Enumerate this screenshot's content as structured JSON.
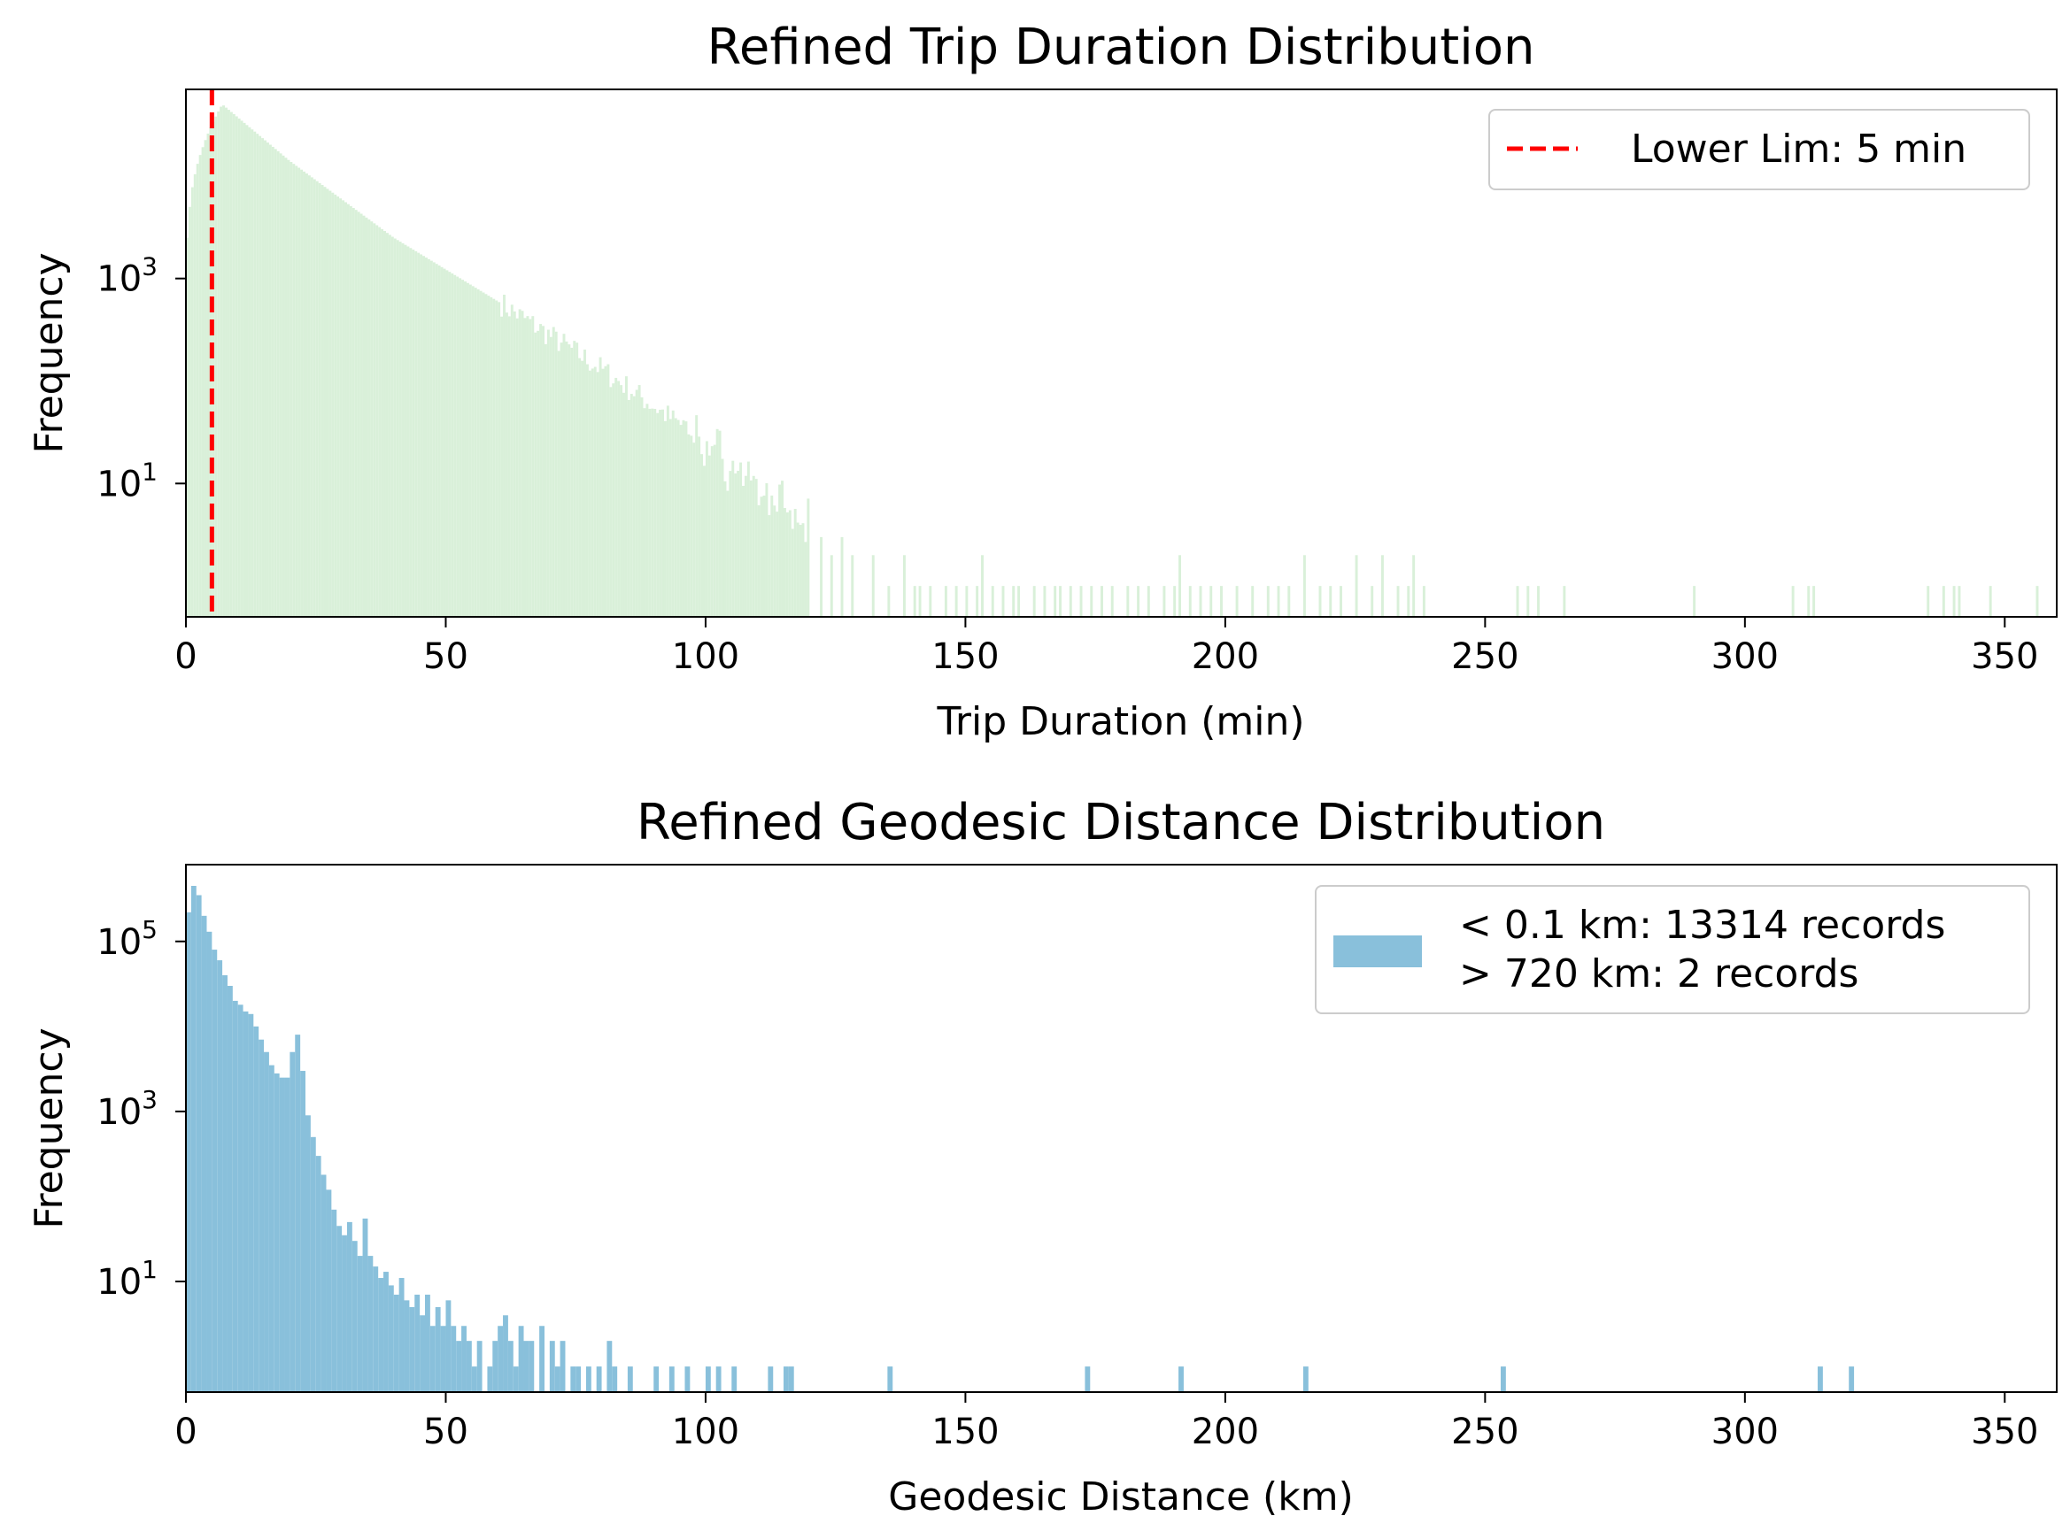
{
  "chart_data": [
    {
      "type": "bar",
      "title": "Refined Trip Duration Distribution",
      "xlabel": "Trip Duration (min)",
      "ylabel": "Frequency",
      "xlim": [
        0,
        360
      ],
      "ylim": [
        0.5,
        70000
      ],
      "yscale": "log",
      "grid": false,
      "bar_color": "#d9f0d9",
      "x_ticks": [
        0,
        50,
        100,
        150,
        200,
        250,
        300,
        350
      ],
      "y_ticks": [
        {
          "value": 10,
          "base": "10",
          "exp": "1"
        },
        {
          "value": 1000,
          "base": "10",
          "exp": "3"
        }
      ],
      "bin_width": 0.5,
      "peak": {
        "x": 7,
        "y": 50000
      },
      "decay_knots": [
        [
          7,
          50000
        ],
        [
          20,
          14000
        ],
        [
          40,
          2500
        ],
        [
          60,
          600
        ],
        [
          80,
          130
        ],
        [
          100,
          25
        ],
        [
          110,
          9
        ],
        [
          118,
          4
        ],
        [
          130,
          2
        ],
        [
          145,
          1.3
        ]
      ],
      "sparse_bars": [
        {
          "x": 122,
          "y": 3
        },
        {
          "x": 124,
          "y": 2
        },
        {
          "x": 126,
          "y": 3
        },
        {
          "x": 128,
          "y": 2
        },
        {
          "x": 132,
          "y": 2
        },
        {
          "x": 135,
          "y": 1
        },
        {
          "x": 138,
          "y": 2
        },
        {
          "x": 140,
          "y": 1
        },
        {
          "x": 141,
          "y": 1
        },
        {
          "x": 143,
          "y": 1
        },
        {
          "x": 146,
          "y": 1
        },
        {
          "x": 148,
          "y": 1
        },
        {
          "x": 150,
          "y": 1
        },
        {
          "x": 152,
          "y": 1
        },
        {
          "x": 153,
          "y": 2
        },
        {
          "x": 155,
          "y": 1
        },
        {
          "x": 157,
          "y": 1
        },
        {
          "x": 159,
          "y": 1
        },
        {
          "x": 160,
          "y": 1
        },
        {
          "x": 163,
          "y": 1
        },
        {
          "x": 165,
          "y": 1
        },
        {
          "x": 167,
          "y": 1
        },
        {
          "x": 168,
          "y": 1
        },
        {
          "x": 170,
          "y": 1
        },
        {
          "x": 172,
          "y": 1
        },
        {
          "x": 174,
          "y": 1
        },
        {
          "x": 176,
          "y": 1
        },
        {
          "x": 178,
          "y": 1
        },
        {
          "x": 181,
          "y": 1
        },
        {
          "x": 183,
          "y": 1
        },
        {
          "x": 185,
          "y": 1
        },
        {
          "x": 188,
          "y": 1
        },
        {
          "x": 190,
          "y": 1
        },
        {
          "x": 191,
          "y": 2
        },
        {
          "x": 193,
          "y": 1
        },
        {
          "x": 195,
          "y": 1
        },
        {
          "x": 197,
          "y": 1
        },
        {
          "x": 199,
          "y": 1
        },
        {
          "x": 202,
          "y": 1
        },
        {
          "x": 205,
          "y": 1
        },
        {
          "x": 208,
          "y": 1
        },
        {
          "x": 210,
          "y": 1
        },
        {
          "x": 212,
          "y": 1
        },
        {
          "x": 215,
          "y": 2
        },
        {
          "x": 218,
          "y": 1
        },
        {
          "x": 220,
          "y": 1
        },
        {
          "x": 222,
          "y": 1
        },
        {
          "x": 225,
          "y": 2
        },
        {
          "x": 228,
          "y": 1
        },
        {
          "x": 230,
          "y": 2
        },
        {
          "x": 233,
          "y": 1
        },
        {
          "x": 235,
          "y": 1
        },
        {
          "x": 236,
          "y": 2
        },
        {
          "x": 238,
          "y": 1
        },
        {
          "x": 256,
          "y": 1
        },
        {
          "x": 258,
          "y": 1
        },
        {
          "x": 260,
          "y": 1
        },
        {
          "x": 265,
          "y": 1
        },
        {
          "x": 290,
          "y": 1
        },
        {
          "x": 309,
          "y": 1
        },
        {
          "x": 312,
          "y": 1
        },
        {
          "x": 313,
          "y": 1
        },
        {
          "x": 335,
          "y": 1
        },
        {
          "x": 338,
          "y": 1
        },
        {
          "x": 340,
          "y": 1
        },
        {
          "x": 341,
          "y": 1
        },
        {
          "x": 347,
          "y": 1
        },
        {
          "x": 356,
          "y": 1
        }
      ],
      "vline": {
        "x": 5,
        "color": "#ff0000",
        "style": "dashed",
        "label": "Lower Lim: 5 min"
      },
      "legend": {
        "position": "upper-right"
      }
    },
    {
      "type": "bar",
      "title": "Refined Geodesic Distance Distribution",
      "xlabel": "Geodesic Distance (km)",
      "ylabel": "Frequency",
      "xlim": [
        0,
        360
      ],
      "ylim": [
        0.5,
        800000
      ],
      "yscale": "log",
      "grid": false,
      "bar_color": "#89c0db",
      "x_ticks": [
        0,
        50,
        100,
        150,
        200,
        250,
        300,
        350
      ],
      "y_ticks": [
        {
          "value": 10,
          "base": "10",
          "exp": "1"
        },
        {
          "value": 1000,
          "base": "10",
          "exp": "3"
        },
        {
          "value": 100000,
          "base": "10",
          "exp": "5"
        }
      ],
      "bin_width": 1,
      "bars": [
        {
          "x": 0,
          "y": 220000
        },
        {
          "x": 1,
          "y": 450000
        },
        {
          "x": 2,
          "y": 350000
        },
        {
          "x": 3,
          "y": 200000
        },
        {
          "x": 4,
          "y": 130000
        },
        {
          "x": 5,
          "y": 80000
        },
        {
          "x": 6,
          "y": 60000
        },
        {
          "x": 7,
          "y": 40000
        },
        {
          "x": 8,
          "y": 30000
        },
        {
          "x": 9,
          "y": 20000
        },
        {
          "x": 10,
          "y": 18000
        },
        {
          "x": 11,
          "y": 15000
        },
        {
          "x": 12,
          "y": 14000
        },
        {
          "x": 13,
          "y": 10000
        },
        {
          "x": 14,
          "y": 7000
        },
        {
          "x": 15,
          "y": 5000
        },
        {
          "x": 16,
          "y": 3500
        },
        {
          "x": 17,
          "y": 2800
        },
        {
          "x": 18,
          "y": 2500
        },
        {
          "x": 19,
          "y": 2500
        },
        {
          "x": 20,
          "y": 5000
        },
        {
          "x": 21,
          "y": 8000
        },
        {
          "x": 22,
          "y": 3000
        },
        {
          "x": 23,
          "y": 900
        },
        {
          "x": 24,
          "y": 500
        },
        {
          "x": 25,
          "y": 300
        },
        {
          "x": 26,
          "y": 180
        },
        {
          "x": 27,
          "y": 120
        },
        {
          "x": 28,
          "y": 70
        },
        {
          "x": 29,
          "y": 45
        },
        {
          "x": 30,
          "y": 35
        },
        {
          "x": 31,
          "y": 50
        },
        {
          "x": 32,
          "y": 30
        },
        {
          "x": 33,
          "y": 20
        },
        {
          "x": 34,
          "y": 55
        },
        {
          "x": 35,
          "y": 20
        },
        {
          "x": 36,
          "y": 15
        },
        {
          "x": 37,
          "y": 11
        },
        {
          "x": 38,
          "y": 13
        },
        {
          "x": 39,
          "y": 9
        },
        {
          "x": 40,
          "y": 7
        },
        {
          "x": 41,
          "y": 11
        },
        {
          "x": 42,
          "y": 6
        },
        {
          "x": 43,
          "y": 5
        },
        {
          "x": 44,
          "y": 7
        },
        {
          "x": 45,
          "y": 4
        },
        {
          "x": 46,
          "y": 7
        },
        {
          "x": 47,
          "y": 3
        },
        {
          "x": 48,
          "y": 5
        },
        {
          "x": 49,
          "y": 3
        },
        {
          "x": 50,
          "y": 6
        },
        {
          "x": 51,
          "y": 3
        },
        {
          "x": 52,
          "y": 2
        },
        {
          "x": 53,
          "y": 3
        },
        {
          "x": 54,
          "y": 2
        },
        {
          "x": 55,
          "y": 1
        },
        {
          "x": 56,
          "y": 2
        },
        {
          "x": 58,
          "y": 1
        },
        {
          "x": 59,
          "y": 2
        },
        {
          "x": 60,
          "y": 3
        },
        {
          "x": 61,
          "y": 4
        },
        {
          "x": 62,
          "y": 2
        },
        {
          "x": 63,
          "y": 1
        },
        {
          "x": 64,
          "y": 3
        },
        {
          "x": 65,
          "y": 2
        },
        {
          "x": 66,
          "y": 2
        },
        {
          "x": 68,
          "y": 3
        },
        {
          "x": 70,
          "y": 2
        },
        {
          "x": 71,
          "y": 1
        },
        {
          "x": 72,
          "y": 2
        },
        {
          "x": 74,
          "y": 1
        },
        {
          "x": 75,
          "y": 1
        },
        {
          "x": 77,
          "y": 1
        },
        {
          "x": 79,
          "y": 1
        },
        {
          "x": 81,
          "y": 2
        },
        {
          "x": 82,
          "y": 1
        },
        {
          "x": 85,
          "y": 1
        },
        {
          "x": 90,
          "y": 1
        },
        {
          "x": 93,
          "y": 1
        },
        {
          "x": 96,
          "y": 1
        },
        {
          "x": 100,
          "y": 1
        },
        {
          "x": 102,
          "y": 1
        },
        {
          "x": 105,
          "y": 1
        },
        {
          "x": 112,
          "y": 1
        },
        {
          "x": 115,
          "y": 1
        },
        {
          "x": 116,
          "y": 1
        },
        {
          "x": 135,
          "y": 1
        },
        {
          "x": 173,
          "y": 1
        },
        {
          "x": 191,
          "y": 1
        },
        {
          "x": 215,
          "y": 1
        },
        {
          "x": 253,
          "y": 1
        },
        {
          "x": 314,
          "y": 1
        },
        {
          "x": 320,
          "y": 1
        }
      ],
      "legend": {
        "position": "upper-right",
        "lines": [
          "< 0.1 km: 13314 records",
          "> 720 km: 2 records"
        ]
      }
    }
  ]
}
